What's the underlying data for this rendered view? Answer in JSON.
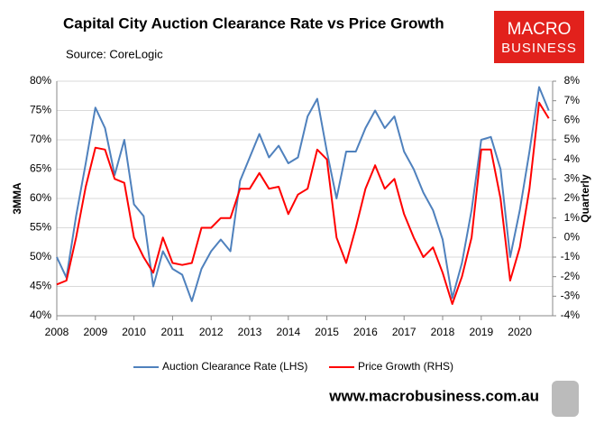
{
  "chart_data": {
    "type": "line",
    "title": "Capital City Auction Clearance Rate vs Price Growth",
    "subtitle": "Source: CoreLogic",
    "y_label": "3MMA",
    "y2_label": "Quarterly",
    "logo": [
      "MACRO",
      "BUSINESS"
    ],
    "footer": "www.macrobusiness.com.au",
    "x": [
      2008,
      2008.25,
      2008.5,
      2008.75,
      2009,
      2009.25,
      2009.5,
      2009.75,
      2010,
      2010.25,
      2010.5,
      2010.75,
      2011,
      2011.25,
      2011.5,
      2011.75,
      2012,
      2012.25,
      2012.5,
      2012.75,
      2013,
      2013.25,
      2013.5,
      2013.75,
      2014,
      2014.25,
      2014.5,
      2014.75,
      2015,
      2015.25,
      2015.5,
      2015.75,
      2016,
      2016.25,
      2016.5,
      2016.75,
      2017,
      2017.25,
      2017.5,
      2017.75,
      2018,
      2018.25,
      2018.5,
      2018.75,
      2019,
      2019.25,
      2019.5,
      2019.75,
      2020,
      2020.25,
      2020.5,
      2020.75
    ],
    "xlim": [
      2008,
      2020.85
    ],
    "xticks": [
      2008,
      2009,
      2010,
      2011,
      2012,
      2013,
      2014,
      2015,
      2016,
      2017,
      2018,
      2019,
      2020
    ],
    "ylim": [
      40,
      80
    ],
    "yticks": [
      {
        "value": 40,
        "label": "40%"
      },
      {
        "value": 45,
        "label": "45%"
      },
      {
        "value": 50,
        "label": "50%"
      },
      {
        "value": 55,
        "label": "55%"
      },
      {
        "value": 60,
        "label": "60%"
      },
      {
        "value": 65,
        "label": "65%"
      },
      {
        "value": 70,
        "label": "70%"
      },
      {
        "value": 75,
        "label": "75%"
      },
      {
        "value": 80,
        "label": "80%"
      }
    ],
    "y2lim": [
      -4,
      8
    ],
    "y2ticks": [
      {
        "value": -4,
        "label": "-4%"
      },
      {
        "value": -3,
        "label": "-3%"
      },
      {
        "value": -2,
        "label": "-2%"
      },
      {
        "value": -1,
        "label": "-1%"
      },
      {
        "value": 0,
        "label": "0%"
      },
      {
        "value": 1,
        "label": "1%"
      },
      {
        "value": 2,
        "label": "2%"
      },
      {
        "value": 3,
        "label": "3%"
      },
      {
        "value": 4,
        "label": "4%"
      },
      {
        "value": 5,
        "label": "5%"
      },
      {
        "value": 6,
        "label": "6%"
      },
      {
        "value": 7,
        "label": "7%"
      },
      {
        "value": 8,
        "label": "8%"
      }
    ],
    "grid": true,
    "series": [
      {
        "name": "Auction Clearance Rate (LHS)",
        "color": "#4f81bd",
        "values": [
          50,
          46.5,
          57,
          66,
          75.5,
          72,
          64,
          70,
          59,
          57,
          45,
          51,
          48,
          47,
          42.5,
          48,
          51,
          53,
          51,
          63,
          67,
          71,
          67,
          69,
          66,
          67,
          74,
          77,
          68,
          60,
          68,
          68,
          72,
          75,
          72,
          74,
          68,
          65,
          61,
          58,
          53,
          43,
          49,
          58,
          70,
          70.5,
          65,
          50,
          58,
          68,
          79,
          75
        ]
      },
      {
        "name": "Price Growth (RHS)",
        "color": "#ff0000",
        "axis": "y2",
        "values": [
          -2.4,
          -2.2,
          0,
          2.6,
          4.6,
          4.5,
          3,
          2.8,
          0,
          -1,
          -1.8,
          0,
          -1.3,
          -1.4,
          -1.3,
          0.5,
          0.5,
          1,
          1,
          2.5,
          2.5,
          3.3,
          2.5,
          2.6,
          1.2,
          2.2,
          2.5,
          4.5,
          4,
          0,
          -1.3,
          0.5,
          2.5,
          3.7,
          2.5,
          3,
          1.2,
          0,
          -1,
          -0.5,
          -1.8,
          -3.4,
          -2,
          0,
          4.5,
          4.5,
          2,
          -2.2,
          -0.5,
          2.5,
          6.9,
          6.1
        ]
      }
    ]
  }
}
